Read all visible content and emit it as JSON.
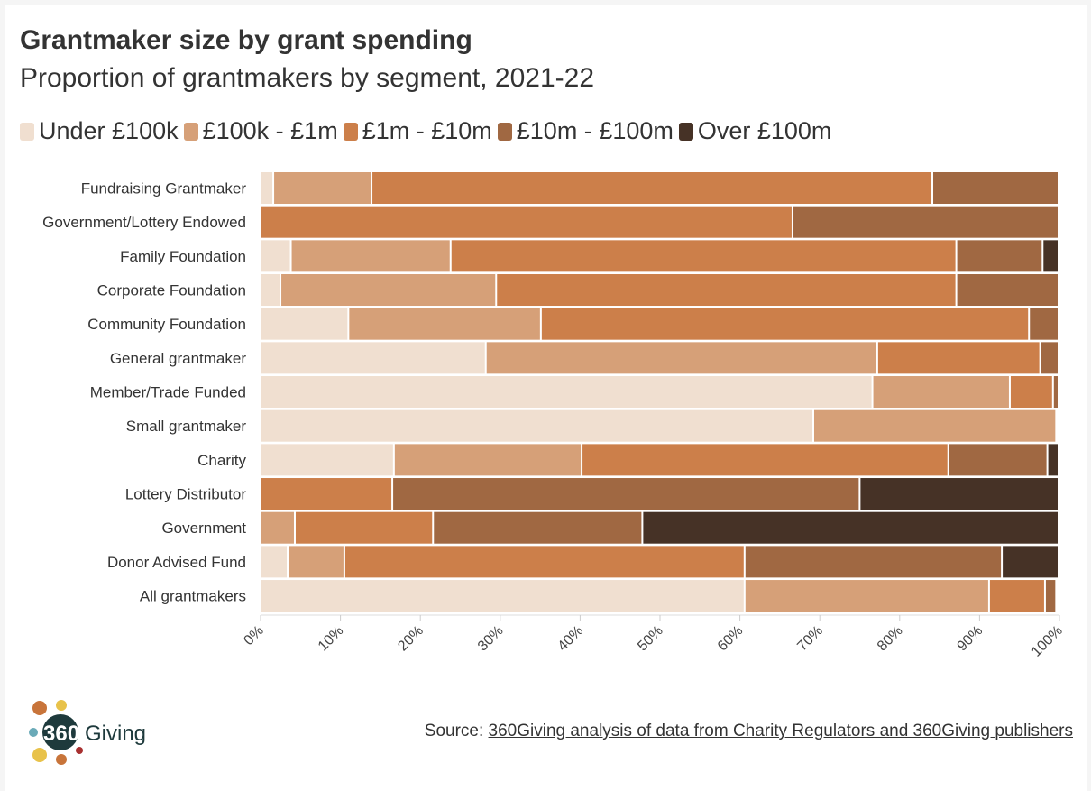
{
  "chart_data": {
    "type": "bar",
    "orientation": "horizontal",
    "stacked": "100%",
    "title": "Grantmaker size by grant spending",
    "subtitle": "Proportion of grantmakers by segment, 2021-22",
    "categories": [
      "Fundraising Grantmaker",
      "Government/Lottery Endowed",
      "Family Foundation",
      "Corporate Foundation",
      "Community Foundation",
      "General grantmaker",
      "Member/Trade Funded",
      "Small grantmaker",
      "Charity",
      "Lottery Distributor",
      "Government",
      "Donor Advised Fund",
      "All grantmakers"
    ],
    "series": [
      {
        "name": "Under £100k",
        "color": "#f0dfd0",
        "values": [
          1.7,
          0,
          3.9,
          2.6,
          11.1,
          28.3,
          76.7,
          69.3,
          16.8,
          0,
          0,
          3.5,
          60.7
        ]
      },
      {
        "name": "£100k - £1m",
        "color": "#d6a078",
        "values": [
          12.3,
          0,
          20.0,
          27.0,
          24.1,
          49.0,
          17.2,
          30.4,
          23.5,
          0,
          4.4,
          7.1,
          30.6
        ]
      },
      {
        "name": "£1m - £10m",
        "color": "#cc7f4a",
        "values": [
          70.2,
          66.7,
          63.3,
          57.6,
          61.1,
          20.4,
          5.4,
          0,
          45.9,
          16.6,
          17.3,
          50.1,
          7.0
        ]
      },
      {
        "name": "£10m - £100m",
        "color": "#a06842",
        "values": [
          15.8,
          33.3,
          10.8,
          12.8,
          3.7,
          2.3,
          0.7,
          0,
          12.4,
          58.5,
          26.2,
          32.2,
          1.4
        ]
      },
      {
        "name": "Over £100m",
        "color": "#463226",
        "values": [
          0,
          0,
          2.0,
          0,
          0,
          0,
          0,
          0,
          1.4,
          24.9,
          52.1,
          7.1,
          0
        ]
      }
    ],
    "xlim": [
      0,
      100
    ],
    "xticks": [
      "0%",
      "10%",
      "20%",
      "30%",
      "40%",
      "50%",
      "60%",
      "70%",
      "80%",
      "90%",
      "100%"
    ],
    "legend": "top",
    "grid": false
  },
  "source": {
    "prefix": "Source: ",
    "link": "360Giving analysis of data from Charity Regulators and 360Giving publishers"
  },
  "logo": {
    "text": "360 Giving"
  }
}
